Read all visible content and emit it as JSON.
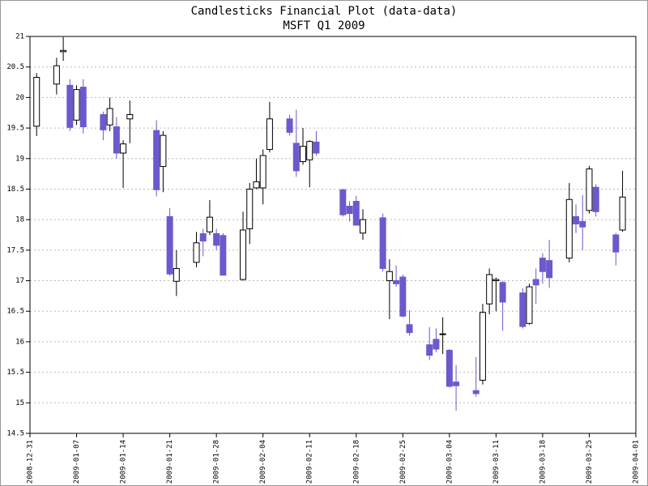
{
  "chart_data": {
    "type": "candlestick",
    "title": "Candlesticks Financial Plot (data-data)",
    "subtitle": "MSFT Q1 2009",
    "x": [
      "2009-01-01",
      "2009-01-04",
      "2009-01-05",
      "2009-01-06",
      "2009-01-07",
      "2009-01-08",
      "2009-01-11",
      "2009-01-12",
      "2009-01-13",
      "2009-01-14",
      "2009-01-15",
      "2009-01-19",
      "2009-01-20",
      "2009-01-21",
      "2009-01-22",
      "2009-01-25",
      "2009-01-26",
      "2009-01-27",
      "2009-01-28",
      "2009-01-29",
      "2009-02-01",
      "2009-02-02",
      "2009-02-03",
      "2009-02-04",
      "2009-02-05",
      "2009-02-08",
      "2009-02-09",
      "2009-02-10",
      "2009-02-11",
      "2009-02-12",
      "2009-02-16",
      "2009-02-17",
      "2009-02-18",
      "2009-02-19",
      "2009-02-22",
      "2009-02-23",
      "2009-02-24",
      "2009-02-25",
      "2009-02-26",
      "2009-03-01",
      "2009-03-02",
      "2009-03-03",
      "2009-03-04",
      "2009-03-05",
      "2009-03-08",
      "2009-03-09",
      "2009-03-10",
      "2009-03-11",
      "2009-03-12",
      "2009-03-15",
      "2009-03-16",
      "2009-03-17",
      "2009-03-18",
      "2009-03-19",
      "2009-03-22",
      "2009-03-23",
      "2009-03-24",
      "2009-03-25",
      "2009-03-26",
      "2009-03-29",
      "2009-03-30"
    ],
    "open": [
      19.53,
      20.22,
      20.75,
      20.2,
      19.63,
      20.17,
      19.72,
      19.55,
      19.52,
      19.09,
      19.65,
      19.46,
      18.87,
      18.05,
      16.99,
      17.3,
      17.77,
      17.8,
      17.77,
      17.74,
      17.02,
      17.85,
      18.52,
      18.52,
      19.15,
      19.65,
      19.25,
      18.95,
      18.98,
      19.27,
      18.49,
      18.22,
      18.3,
      17.78,
      18.03,
      17.0,
      17.0,
      17.06,
      16.28,
      15.95,
      16.04,
      16.12,
      15.86,
      15.34,
      15.2,
      15.37,
      16.62,
      17.0,
      16.97,
      16.8,
      16.3,
      17.02,
      17.37,
      17.33,
      17.37,
      18.05,
      17.97,
      18.15,
      18.53,
      17.75,
      17.83
    ],
    "high": [
      20.4,
      20.65,
      20.99,
      20.3,
      20.2,
      20.3,
      19.77,
      20.0,
      19.68,
      19.3,
      19.95,
      19.63,
      19.45,
      18.19,
      17.5,
      17.8,
      17.85,
      18.32,
      17.85,
      17.78,
      18.13,
      18.6,
      19.0,
      19.15,
      19.93,
      19.72,
      19.8,
      19.5,
      19.3,
      19.45,
      18.5,
      18.3,
      18.39,
      18.17,
      18.1,
      17.35,
      17.25,
      17.1,
      16.52,
      16.24,
      16.22,
      16.4,
      15.88,
      15.62,
      15.75,
      16.62,
      17.2,
      17.05,
      17.0,
      16.88,
      16.95,
      17.2,
      17.45,
      17.67,
      18.6,
      18.25,
      18.4,
      18.88,
      18.58,
      17.78,
      18.8
    ],
    "low": [
      19.37,
      20.05,
      20.6,
      19.45,
      19.55,
      19.41,
      19.3,
      19.45,
      19.0,
      18.52,
      19.25,
      18.38,
      18.45,
      17.08,
      16.75,
      17.22,
      17.4,
      17.75,
      17.5,
      17.09,
      17.0,
      17.6,
      18.5,
      18.25,
      19.1,
      19.38,
      18.7,
      18.9,
      18.53,
      19.05,
      18.05,
      17.97,
      17.9,
      17.67,
      17.15,
      16.37,
      16.9,
      16.4,
      16.1,
      15.7,
      15.83,
      15.8,
      15.25,
      14.87,
      15.1,
      15.3,
      16.45,
      16.5,
      16.18,
      16.22,
      16.28,
      16.62,
      16.95,
      16.88,
      17.3,
      17.78,
      17.5,
      18.1,
      18.05,
      17.25,
      17.8
    ],
    "close": [
      20.33,
      20.52,
      20.77,
      19.51,
      20.13,
      19.52,
      19.47,
      19.82,
      19.09,
      19.24,
      19.72,
      18.49,
      19.38,
      17.11,
      17.2,
      17.62,
      17.65,
      18.04,
      17.58,
      17.09,
      17.83,
      18.5,
      18.62,
      19.05,
      19.65,
      19.43,
      18.8,
      19.2,
      19.28,
      19.09,
      18.08,
      18.1,
      17.91,
      18.0,
      17.2,
      17.15,
      16.95,
      16.42,
      16.15,
      15.78,
      15.88,
      16.13,
      15.27,
      15.28,
      15.15,
      16.48,
      17.1,
      17.02,
      16.65,
      16.25,
      16.9,
      16.93,
      17.15,
      17.05,
      18.33,
      17.93,
      17.88,
      18.83,
      18.13,
      17.47,
      18.37
    ],
    "up_color": "#ffffff",
    "down_color": "#6a5acd",
    "xlim": [
      "2008-12-31",
      "2009-04-01"
    ],
    "xticks": [
      "2008-12-31",
      "2009-01-07",
      "2009-01-14",
      "2009-01-21",
      "2009-01-28",
      "2009-02-04",
      "2009-02-11",
      "2009-02-18",
      "2009-02-25",
      "2009-03-04",
      "2009-03-11",
      "2009-03-18",
      "2009-03-25",
      "2009-04-01"
    ],
    "ylim": [
      14.5,
      21
    ],
    "yticks": [
      14.5,
      15,
      15.5,
      16,
      16.5,
      17,
      17.5,
      18,
      18.5,
      19,
      19.5,
      20,
      20.5,
      21
    ],
    "grid": true
  }
}
